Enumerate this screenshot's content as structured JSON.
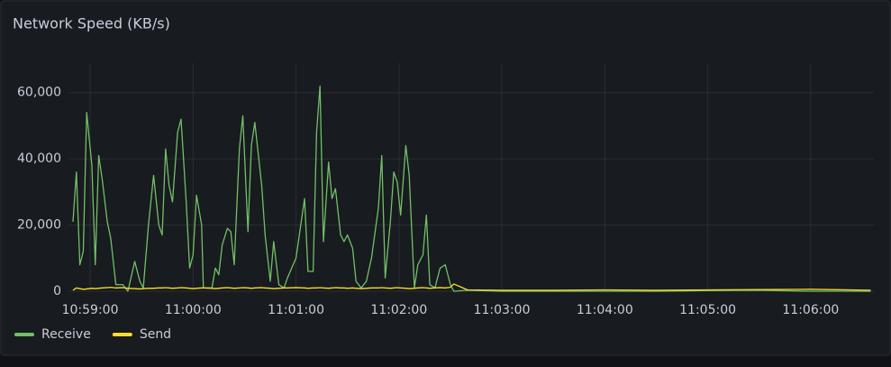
{
  "chart_data": {
    "type": "line",
    "title": "Network Speed (KB/s)",
    "x": [
      "10:58:50",
      "10:58:52",
      "10:58:54",
      "10:58:56",
      "10:58:58",
      "10:59:01",
      "10:59:03",
      "10:59:05",
      "10:59:07",
      "10:59:10",
      "10:59:12",
      "10:59:15",
      "10:59:19",
      "10:59:22",
      "10:59:26",
      "10:59:29",
      "10:59:31",
      "10:59:34",
      "10:59:37",
      "10:59:40",
      "10:59:42",
      "10:59:44",
      "10:59:46",
      "10:59:48",
      "10:59:51",
      "10:59:53",
      "10:59:56",
      "10:59:58",
      "11:00:00",
      "11:00:02",
      "11:00:05",
      "11:00:06",
      "11:00:11",
      "11:00:13",
      "11:00:15",
      "11:00:17",
      "11:00:20",
      "11:00:22",
      "11:00:24",
      "11:00:27",
      "11:00:29",
      "11:00:32",
      "11:00:34",
      "11:00:36",
      "11:00:40",
      "11:00:42",
      "11:00:45",
      "11:00:47",
      "11:00:50",
      "11:00:53",
      "11:00:55",
      "11:01:00",
      "11:01:05",
      "11:01:07",
      "11:01:10",
      "11:01:12",
      "11:01:14",
      "11:01:16",
      "11:01:19",
      "11:01:21",
      "11:01:23",
      "11:01:26",
      "11:01:28",
      "11:01:30",
      "11:01:33",
      "11:01:35",
      "11:01:38",
      "11:01:41",
      "11:01:44",
      "11:01:48",
      "11:01:50",
      "11:01:52",
      "11:01:55",
      "11:01:57",
      "11:01:59",
      "11:02:01",
      "11:02:04",
      "11:02:06",
      "11:02:09",
      "11:02:11",
      "11:02:14",
      "11:02:16",
      "11:02:18",
      "11:02:21",
      "11:02:24",
      "11:02:27",
      "11:02:30",
      "11:02:32",
      "11:02:40",
      "11:03:00",
      "11:03:30",
      "11:04:00",
      "11:04:30",
      "11:05:00",
      "11:05:30",
      "11:06:00",
      "11:06:35"
    ],
    "series": [
      {
        "name": "Receive",
        "color": "#73bf69",
        "values": [
          21000,
          36000,
          8000,
          12000,
          54000,
          38000,
          8000,
          41000,
          34000,
          21000,
          16000,
          2000,
          2000,
          0,
          9000,
          3000,
          1000,
          20000,
          35000,
          20000,
          17000,
          43000,
          32000,
          27000,
          48000,
          52000,
          27000,
          7000,
          11000,
          29000,
          20000,
          1000,
          1000,
          7000,
          5000,
          14000,
          19000,
          18000,
          8000,
          43000,
          53000,
          18000,
          44000,
          51000,
          32000,
          17000,
          3000,
          15000,
          2000,
          1000,
          4000,
          10000,
          28000,
          6000,
          6000,
          48000,
          62000,
          15000,
          39000,
          28000,
          31000,
          17000,
          15000,
          17000,
          13000,
          3000,
          1000,
          3000,
          10000,
          25000,
          41000,
          4000,
          21000,
          36000,
          33000,
          23000,
          44000,
          35000,
          1000,
          8000,
          11000,
          23000,
          2000,
          1000,
          7000,
          8000,
          2000,
          0,
          300,
          0,
          0,
          0,
          0,
          200,
          300,
          0,
          0
        ]
      },
      {
        "name": "Send",
        "color": "#fade2a",
        "values": [
          300,
          1000,
          800,
          600,
          700,
          900,
          800,
          900,
          1000,
          1100,
          1200,
          1000,
          1100,
          900,
          800,
          700,
          800,
          900,
          900,
          1000,
          1000,
          1100,
          1000,
          900,
          1000,
          1100,
          1000,
          900,
          800,
          900,
          1000,
          1000,
          900,
          800,
          900,
          1000,
          1100,
          1000,
          900,
          1000,
          1100,
          1000,
          900,
          1000,
          1100,
          1000,
          900,
          800,
          900,
          1000,
          1000,
          1100,
          1000,
          900,
          1000,
          1000,
          1100,
          1000,
          900,
          1000,
          1100,
          1000,
          1000,
          900,
          1000,
          900,
          800,
          900,
          1000,
          1000,
          1100,
          1000,
          900,
          1000,
          1100,
          1000,
          900,
          800,
          900,
          1000,
          1100,
          1000,
          900,
          1000,
          1100,
          1000,
          1200,
          2200,
          400,
          300,
          300,
          400,
          300,
          400,
          500,
          600,
          300
        ]
      }
    ],
    "xlim": [
      "10:58:50",
      "11:06:40"
    ],
    "xticks": [
      "10:59:00",
      "11:00:00",
      "11:01:00",
      "11:02:00",
      "11:03:00",
      "11:04:00",
      "11:05:00",
      "11:06:00"
    ],
    "ylim": [
      0,
      70000
    ],
    "yticks": [
      0,
      {
        "value": 20000,
        "label": "20,000"
      },
      {
        "value": 40000,
        "label": "40,000"
      },
      {
        "value": 60000,
        "label": "60,000"
      }
    ],
    "grid": true,
    "legend": "bottom-left"
  }
}
